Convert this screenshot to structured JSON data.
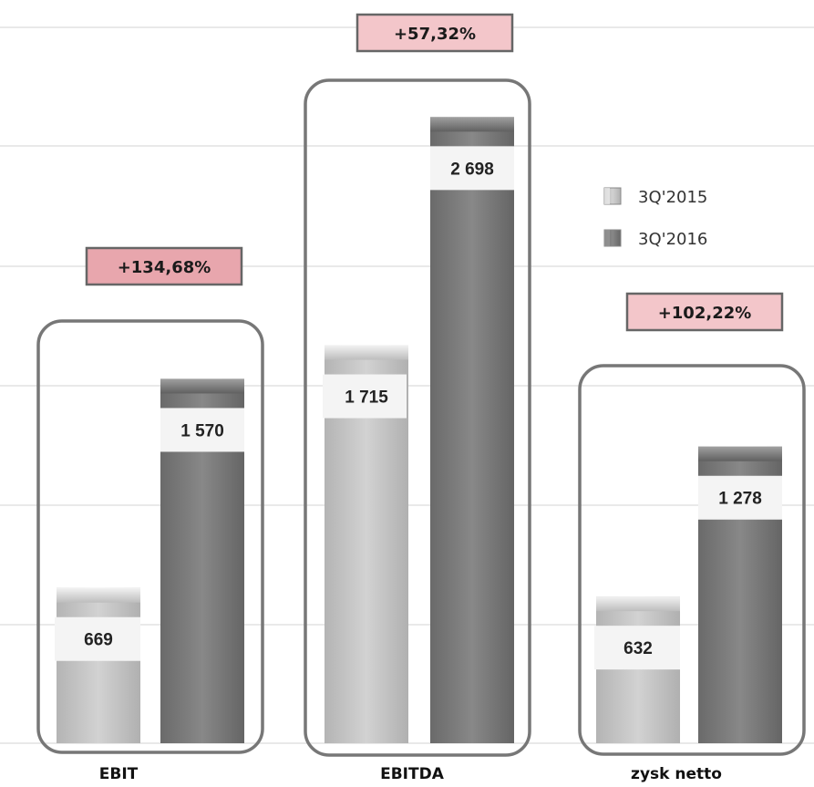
{
  "chart_data": {
    "type": "bar",
    "categories": [
      "EBIT",
      "EBITDA",
      "zysk netto"
    ],
    "series": [
      {
        "name": "3Q'2015",
        "values": [
          669,
          1715,
          632
        ],
        "labels": [
          "669",
          "1 715",
          "632"
        ],
        "color": "#c4c4c4"
      },
      {
        "name": "3Q'2016",
        "values": [
          1570,
          2698,
          1278
        ],
        "labels": [
          "1 570",
          "2 698",
          "1 278"
        ],
        "color": "#7b7b7b"
      }
    ],
    "changes": [
      "+134,68%",
      "+57,32%",
      "+102,22%"
    ],
    "change_colors": [
      "#e8a6ad",
      "#f3c6ca",
      "#f3c6ca"
    ],
    "grid": true,
    "legend_position": "right"
  }
}
